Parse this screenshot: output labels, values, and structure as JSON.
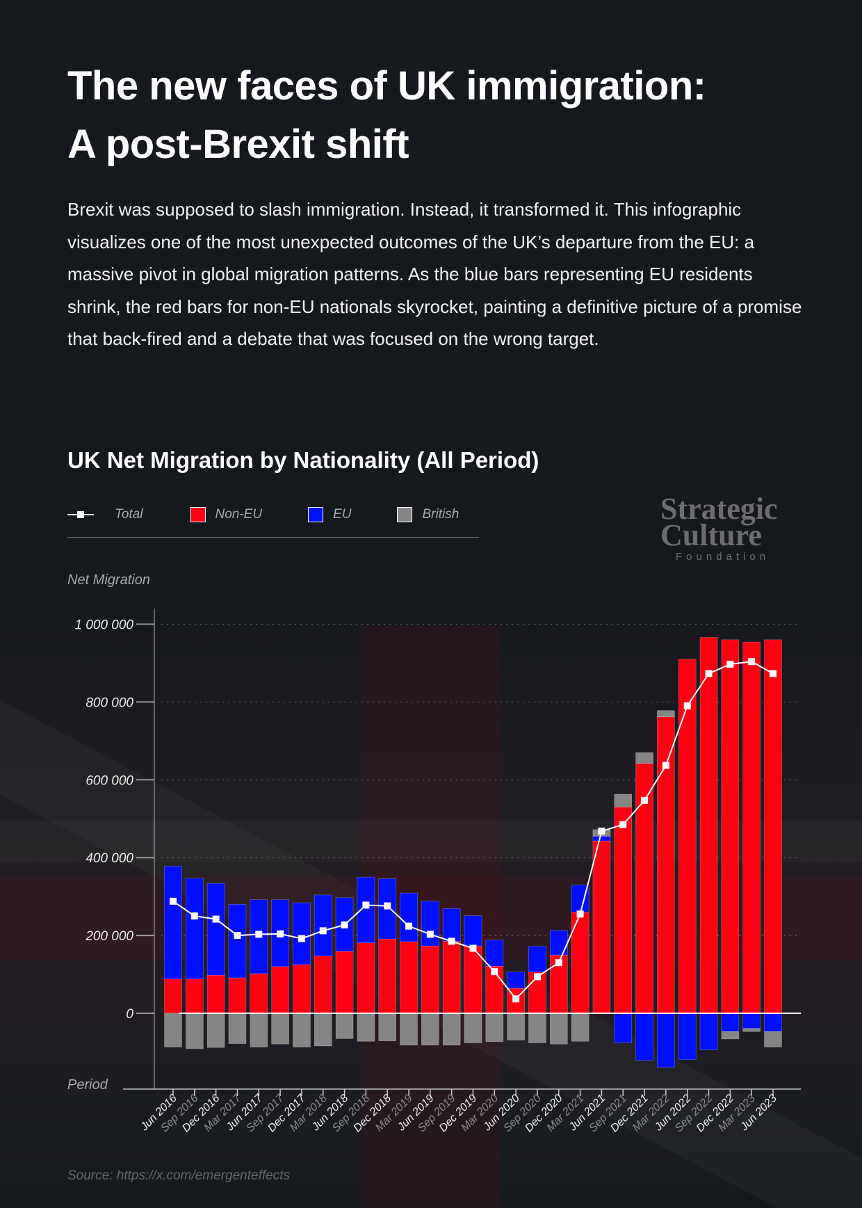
{
  "header": {
    "title_line1": "The new faces of UK immigration:",
    "title_line2": "A post-Brexit shift",
    "intro": "Brexit was supposed to slash immigration. Instead, it transformed it. This infographic visualizes one of the most unexpected outcomes of the UK’s departure from the EU: a massive pivot in global migration patterns. As the blue bars representing EU residents shrink, the red bars for non-EU nationals skyrocket, painting a definitive picture of a promise that back-fired and a debate that was focused on the wrong target."
  },
  "logo": {
    "line1": "Strategic",
    "line2": "Culture",
    "line3": "Foundation"
  },
  "source": "Source: https://x.com/emergenteffects",
  "colors": {
    "non_eu": "#ff0013",
    "eu": "#0010ff",
    "british": "#858585",
    "total": "#ffffff",
    "background": "#15181d"
  },
  "chart_data": {
    "type": "bar",
    "stacked": true,
    "title": "UK Net Migration by Nationality (All Period)",
    "xlabel": "Period",
    "ylabel": "Net Migration",
    "ylim": [
      -200000,
      1000000
    ],
    "yticks": [
      0,
      200000,
      400000,
      600000,
      800000,
      1000000
    ],
    "ytick_labels": [
      "0",
      "200 000",
      "400 000",
      "600 000",
      "800 000",
      "1 000 000"
    ],
    "grid": "horizontal dotted",
    "legend_position": "top-left",
    "categories": [
      "Jun 2016",
      "Sep 2016",
      "Dec 2016",
      "Mar 2017",
      "Jun 2017",
      "Sep 2017",
      "Dec 2017",
      "Mar 2018",
      "Jun 2018",
      "Sep 2018",
      "Dec 2018",
      "Mar 2019",
      "Jun 2019",
      "Sep 2019",
      "Dec 2019",
      "Mar 2020",
      "Jun 2020",
      "Sep 2020",
      "Dec 2020",
      "Mar 2021",
      "Jun 2021",
      "Sep 2021",
      "Dec 2021",
      "Mar 2022",
      "Jun 2022",
      "Sep 2022",
      "Dec 2022",
      "Mar 2023",
      "Jun 2023"
    ],
    "series": [
      {
        "name": "Non-EU",
        "kind": "bar",
        "values": [
          88000,
          88000,
          98000,
          91000,
          102000,
          120000,
          125000,
          147000,
          159000,
          181000,
          191000,
          184000,
          173000,
          185000,
          173000,
          121000,
          64000,
          106000,
          150000,
          260000,
          443000,
          530000,
          642000,
          762000,
          910000,
          966000,
          960000,
          954000,
          960000
        ]
      },
      {
        "name": "EU",
        "kind": "bar",
        "values": [
          290000,
          259000,
          236000,
          189000,
          190000,
          172000,
          159000,
          157000,
          138000,
          169000,
          155000,
          125000,
          115000,
          84000,
          78000,
          67000,
          42000,
          66000,
          63000,
          70000,
          12000,
          -76000,
          -121000,
          -139000,
          -119000,
          -94000,
          -47000,
          -39000,
          -47000
        ]
      },
      {
        "name": "British",
        "kind": "bar",
        "values": [
          -87000,
          -91000,
          -88000,
          -78000,
          -87000,
          -79000,
          -87000,
          -84000,
          -65000,
          -72000,
          -71000,
          -82000,
          -82000,
          -82000,
          -76000,
          -73000,
          -69000,
          -76000,
          -79000,
          -72000,
          17000,
          33000,
          28000,
          16000,
          0,
          0,
          -19000,
          -8000,
          -40000
        ]
      },
      {
        "name": "Total",
        "kind": "line",
        "values": [
          288000,
          250000,
          242000,
          200000,
          203000,
          204000,
          192000,
          212000,
          227000,
          278000,
          276000,
          224000,
          203000,
          185000,
          167000,
          107000,
          37000,
          94000,
          130000,
          255000,
          468000,
          485000,
          547000,
          637000,
          790000,
          873000,
          897000,
          904000,
          873000
        ]
      }
    ]
  }
}
